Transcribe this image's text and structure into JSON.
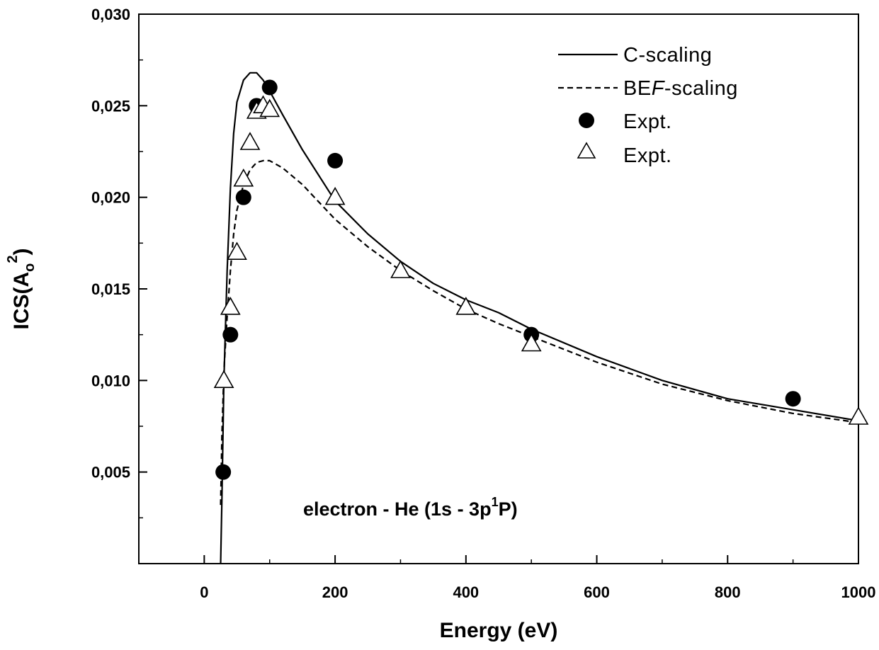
{
  "chart_data": {
    "type": "line",
    "xlabel": "Energy (eV)",
    "ylabel": {
      "main": "ICS(A",
      "sub": "o",
      "sup": "2",
      "close": ")"
    },
    "xlim": [
      -100,
      1000
    ],
    "ylim": [
      0,
      0.03
    ],
    "x_ticks": [
      0,
      200,
      400,
      600,
      800,
      1000
    ],
    "x_tick_labels": [
      "0",
      "200",
      "400",
      "600",
      "800",
      "1000"
    ],
    "y_ticks": [
      0.005,
      0.01,
      0.015,
      0.02,
      0.025,
      0.03
    ],
    "y_tick_labels": [
      "0,005",
      "0,010",
      "0,015",
      "0,020",
      "0,025",
      "0,030"
    ],
    "annotation": {
      "pre": "electron - He (1s - 3p",
      "sup": "1",
      "post": "P)"
    },
    "legend": {
      "position": "top-right",
      "c_scaling": {
        "pre": "C-scaling"
      },
      "bef_scaling": {
        "pre": "BE",
        "italic": "F",
        "post": "-scaling"
      },
      "expt_circle": "Expt.",
      "expt_triangle": "Expt."
    },
    "series": [
      {
        "name": "C-scaling",
        "kind": "line",
        "style": "solid",
        "x": [
          25,
          27,
          30,
          35,
          40,
          45,
          50,
          60,
          70,
          80,
          90,
          100,
          120,
          150,
          200,
          250,
          300,
          350,
          400,
          450,
          500,
          600,
          700,
          800,
          900,
          1000
        ],
        "y": [
          0.0,
          0.0035,
          0.01,
          0.016,
          0.0205,
          0.0235,
          0.0252,
          0.0264,
          0.0268,
          0.0268,
          0.0264,
          0.0258,
          0.0245,
          0.0226,
          0.0198,
          0.018,
          0.0165,
          0.0153,
          0.0144,
          0.0137,
          0.0128,
          0.0113,
          0.01,
          0.009,
          0.0084,
          0.0078
        ]
      },
      {
        "name": "BEF-scaling",
        "kind": "line",
        "style": "dashed",
        "x": [
          25,
          27,
          30,
          35,
          40,
          45,
          50,
          60,
          70,
          80,
          90,
          100,
          120,
          150,
          200,
          250,
          300,
          350,
          400,
          450,
          500,
          600,
          700,
          800,
          900,
          1000
        ],
        "y": [
          0.0032,
          0.007,
          0.0105,
          0.0135,
          0.016,
          0.018,
          0.0193,
          0.0207,
          0.0215,
          0.0219,
          0.022,
          0.022,
          0.0216,
          0.0207,
          0.0188,
          0.0173,
          0.016,
          0.0149,
          0.0139,
          0.0131,
          0.0124,
          0.011,
          0.0098,
          0.0089,
          0.0082,
          0.0077
        ]
      },
      {
        "name": "Expt. (circles)",
        "kind": "scatter",
        "marker": "circle",
        "x": [
          29,
          40,
          60,
          80,
          100,
          200,
          500,
          900
        ],
        "y": [
          0.005,
          0.0125,
          0.02,
          0.025,
          0.026,
          0.022,
          0.0125,
          0.009
        ]
      },
      {
        "name": "Expt. (triangles)",
        "kind": "scatter",
        "marker": "triangle",
        "x": [
          30,
          40,
          50,
          60,
          70,
          80,
          90,
          100,
          200,
          300,
          400,
          500,
          1000
        ],
        "y": [
          0.01,
          0.014,
          0.017,
          0.021,
          0.023,
          0.0247,
          0.025,
          0.0248,
          0.02,
          0.016,
          0.014,
          0.012,
          0.008
        ]
      }
    ]
  }
}
